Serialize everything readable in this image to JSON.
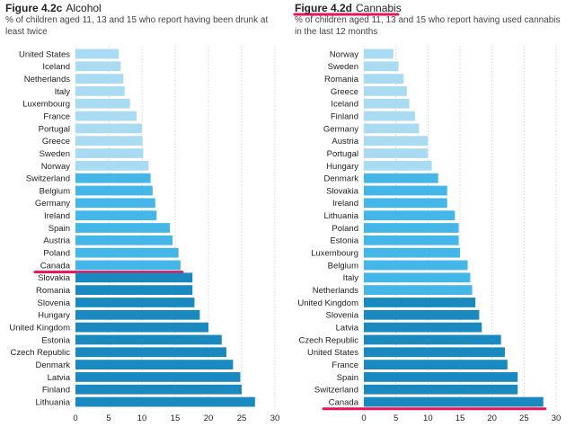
{
  "charts": [
    {
      "figure_number": "Figure 4.2c",
      "figure_title": "Alcohol",
      "subtitle": "% of children aged 11, 13 and 15 who report having been drunk at least twice",
      "highlight_category": "Canada",
      "highlight_color": "#e8135a"
    },
    {
      "figure_number": "Figure 4.2d",
      "figure_title": "Cannabis",
      "subtitle": "% of children aged 11, 13 and 15 who report having used cannabis in the last 12 months",
      "highlight_category": "Canada",
      "highlight_color": "#e8135a"
    }
  ],
  "colors": {
    "light": "#a9dcf2",
    "mid": "#45b6e8",
    "dark": "#1a89bf",
    "grid": "#bbbbbb",
    "highlight": "#e8135a"
  },
  "chart_data": [
    {
      "type": "bar",
      "orientation": "horizontal",
      "title": "Alcohol",
      "categories": [
        "United States",
        "Iceland",
        "Netherlands",
        "Italy",
        "Luxembourg",
        "France",
        "Portugal",
        "Greece",
        "Sweden",
        "Norway",
        "Switzerland",
        "Belgium",
        "Germany",
        "Ireland",
        "Spain",
        "Austria",
        "Poland",
        "Canada",
        "Slovakia",
        "Romania",
        "Slovenia",
        "Hungary",
        "United Kingdom",
        "Estonia",
        "Czech Republic",
        "Denmark",
        "Latvia",
        "Finland",
        "Lithuania"
      ],
      "values": [
        6.5,
        6.8,
        7.2,
        7.4,
        8.2,
        9.2,
        10.0,
        10.1,
        10.2,
        11.0,
        11.3,
        11.6,
        12.0,
        12.2,
        14.2,
        14.6,
        15.5,
        15.8,
        17.6,
        17.6,
        17.9,
        18.7,
        20.0,
        22.0,
        22.7,
        23.7,
        24.8,
        25.0,
        27.0
      ],
      "shades": [
        "light",
        "light",
        "light",
        "light",
        "light",
        "light",
        "light",
        "light",
        "light",
        "light",
        "mid",
        "mid",
        "mid",
        "mid",
        "mid",
        "mid",
        "mid",
        "mid",
        "dark",
        "dark",
        "dark",
        "dark",
        "dark",
        "dark",
        "dark",
        "dark",
        "dark",
        "dark",
        "dark"
      ],
      "xlim": [
        0,
        30
      ],
      "xticks": [
        "0",
        "5",
        "10",
        "15",
        "20",
        "25",
        "30"
      ],
      "grid": true
    },
    {
      "type": "bar",
      "orientation": "horizontal",
      "title": "Cannabis",
      "categories": [
        "Norway",
        "Sweden",
        "Romania",
        "Greece",
        "Iceland",
        "Finland",
        "Germany",
        "Austria",
        "Portugal",
        "Hungary",
        "Denmark",
        "Slovakia",
        "Ireland",
        "Lithuania",
        "Poland",
        "Estonia",
        "Luxembourg",
        "Belgium",
        "Italy",
        "Netherlands",
        "United Kingdom",
        "Slovenia",
        "Latvia",
        "Czech Republic",
        "United States",
        "France",
        "Spain",
        "Switzerland",
        "Canada"
      ],
      "values": [
        4.6,
        5.4,
        6.2,
        6.7,
        7.1,
        8.0,
        8.6,
        10.0,
        10.0,
        10.6,
        11.6,
        13.0,
        13.0,
        14.2,
        14.8,
        14.8,
        15.0,
        16.2,
        16.6,
        16.9,
        17.4,
        18.0,
        18.4,
        21.4,
        22.0,
        22.4,
        24.0,
        24.0,
        28.0
      ],
      "shades": [
        "light",
        "light",
        "light",
        "light",
        "light",
        "light",
        "light",
        "light",
        "light",
        "light",
        "mid",
        "mid",
        "mid",
        "mid",
        "mid",
        "mid",
        "mid",
        "mid",
        "mid",
        "mid",
        "dark",
        "dark",
        "dark",
        "dark",
        "dark",
        "dark",
        "dark",
        "dark",
        "dark"
      ],
      "xlim": [
        0,
        30
      ],
      "xticks": [
        "0",
        "5",
        "10",
        "15",
        "20",
        "25",
        "30"
      ],
      "grid": true
    }
  ]
}
